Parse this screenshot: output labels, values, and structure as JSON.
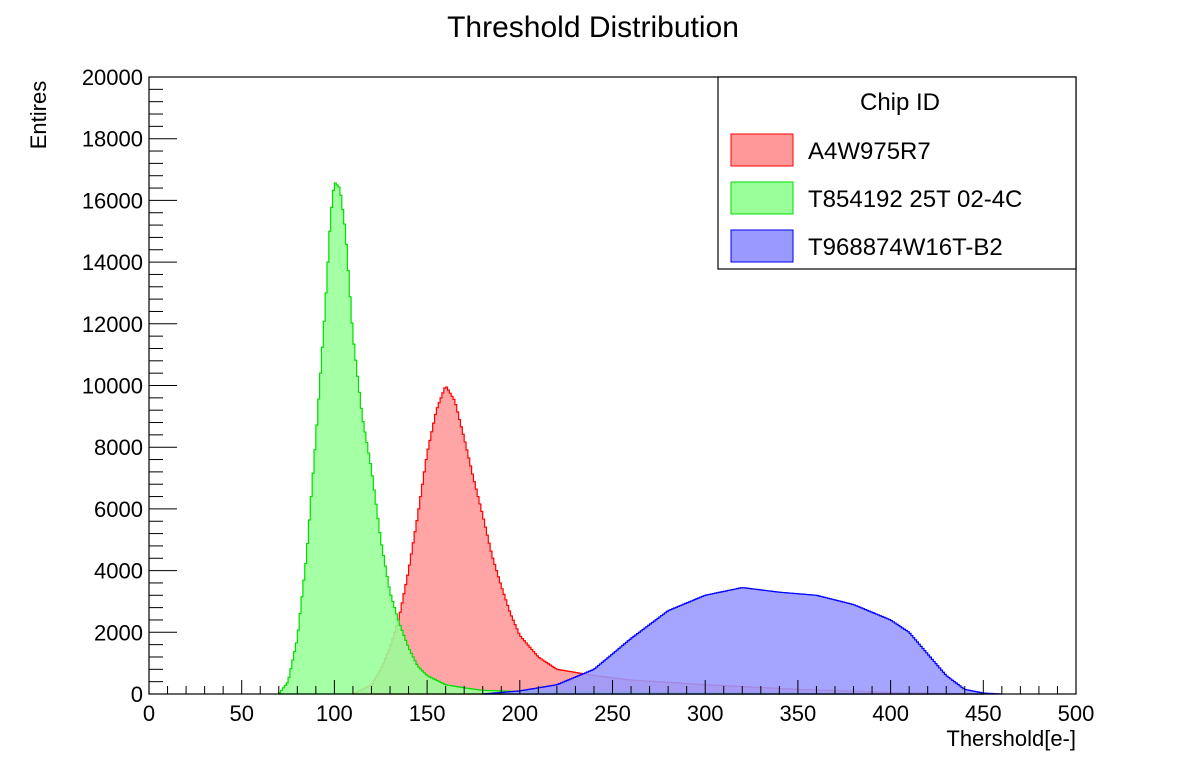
{
  "chart_data": {
    "type": "area",
    "title": "Threshold Distribution",
    "xlabel": "Thershold[e-]",
    "ylabel": "Entires",
    "xlim": [
      0,
      500
    ],
    "ylim": [
      0,
      20000
    ],
    "x_ticks": [
      0,
      50,
      100,
      150,
      200,
      250,
      300,
      350,
      400,
      450,
      500
    ],
    "y_ticks": [
      0,
      2000,
      4000,
      6000,
      8000,
      10000,
      12000,
      14000,
      16000,
      18000,
      20000
    ],
    "grid": false,
    "legend": {
      "title": "Chip ID",
      "position": "top-right"
    },
    "series": [
      {
        "name": "A4W975R7",
        "fill_color": "#ff9999",
        "line_color": "#ff0000",
        "x": [
          110,
          120,
          125,
          130,
          135,
          140,
          145,
          150,
          155,
          160,
          165,
          170,
          175,
          180,
          185,
          190,
          195,
          200,
          210,
          220,
          230,
          240,
          260,
          280,
          300,
          350,
          400,
          450
        ],
        "y": [
          0,
          300,
          800,
          1500,
          2500,
          4000,
          5800,
          7800,
          9200,
          10000,
          9500,
          8300,
          7000,
          5800,
          4500,
          3500,
          2600,
          1900,
          1200,
          800,
          700,
          600,
          450,
          380,
          300,
          150,
          50,
          0
        ]
      },
      {
        "name": "T854192 25T 02-4C",
        "fill_color": "#99ff99",
        "line_color": "#00dd00",
        "x": [
          70,
          75,
          80,
          85,
          90,
          95,
          98,
          100,
          103,
          106,
          110,
          115,
          120,
          125,
          130,
          135,
          140,
          145,
          150,
          155,
          160,
          170,
          180,
          200,
          250,
          300,
          350,
          400,
          450
        ],
        "y": [
          0,
          400,
          1800,
          4500,
          8300,
          12500,
          15500,
          16600,
          16400,
          15000,
          11600,
          9000,
          7300,
          5000,
          3300,
          2300,
          1500,
          900,
          600,
          450,
          300,
          200,
          120,
          80,
          60,
          40,
          25,
          15,
          0
        ]
      },
      {
        "name": "T968874W16T-B2",
        "fill_color": "#9999ff",
        "line_color": "#0000ff",
        "x": [
          180,
          200,
          220,
          240,
          260,
          280,
          300,
          320,
          340,
          360,
          380,
          400,
          410,
          420,
          430,
          440,
          450,
          460
        ],
        "y": [
          0,
          100,
          300,
          800,
          1800,
          2700,
          3200,
          3450,
          3300,
          3200,
          2900,
          2400,
          2000,
          1300,
          600,
          150,
          30,
          0
        ]
      }
    ]
  }
}
